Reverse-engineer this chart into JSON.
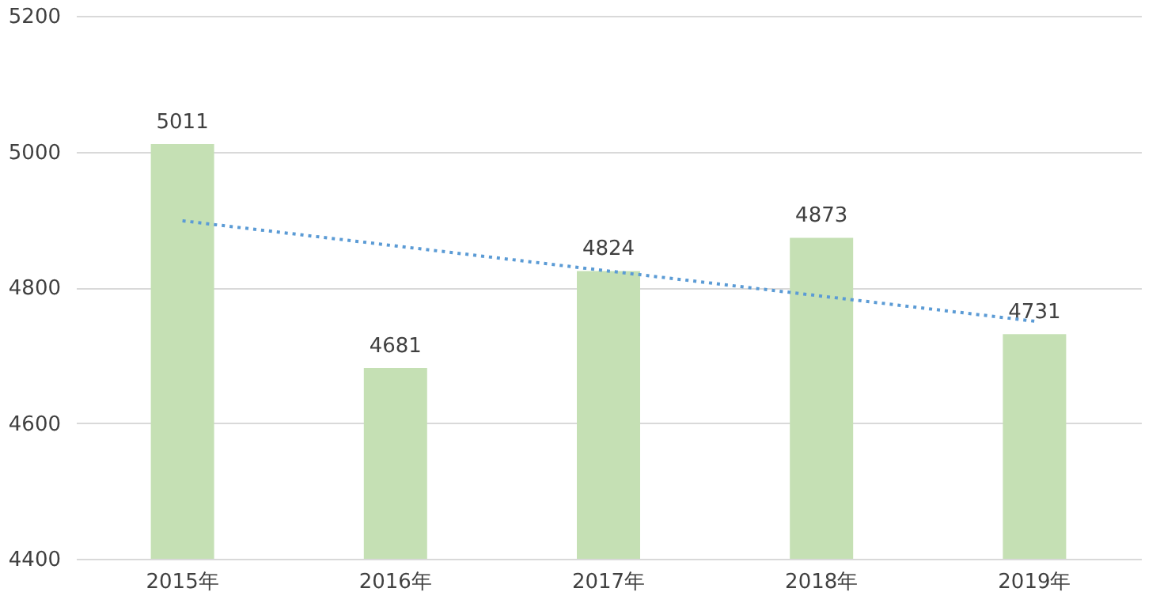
{
  "chart_data": {
    "type": "bar",
    "categories": [
      "2015年",
      "2016年",
      "2017年",
      "2018年",
      "2019年"
    ],
    "series": [
      {
        "color": "#c5e0b4",
        "values": [
          5011,
          4681,
          4824,
          4873,
          4731
        ],
        "value_labels": [
          "5011",
          "4681",
          "4824",
          "4873",
          "4731"
        ]
      },
      {
        "type": "line",
        "color": "#5b9bd5",
        "values": [
          4898,
          4861,
          4824,
          4787,
          4750
        ],
        "marker": "none",
        "line_style": "dotted"
      }
    ],
    "ylim": [
      4400,
      5200
    ],
    "yticks": [
      4400,
      4600,
      4800,
      5000,
      5200
    ],
    "grid": "y"
  }
}
